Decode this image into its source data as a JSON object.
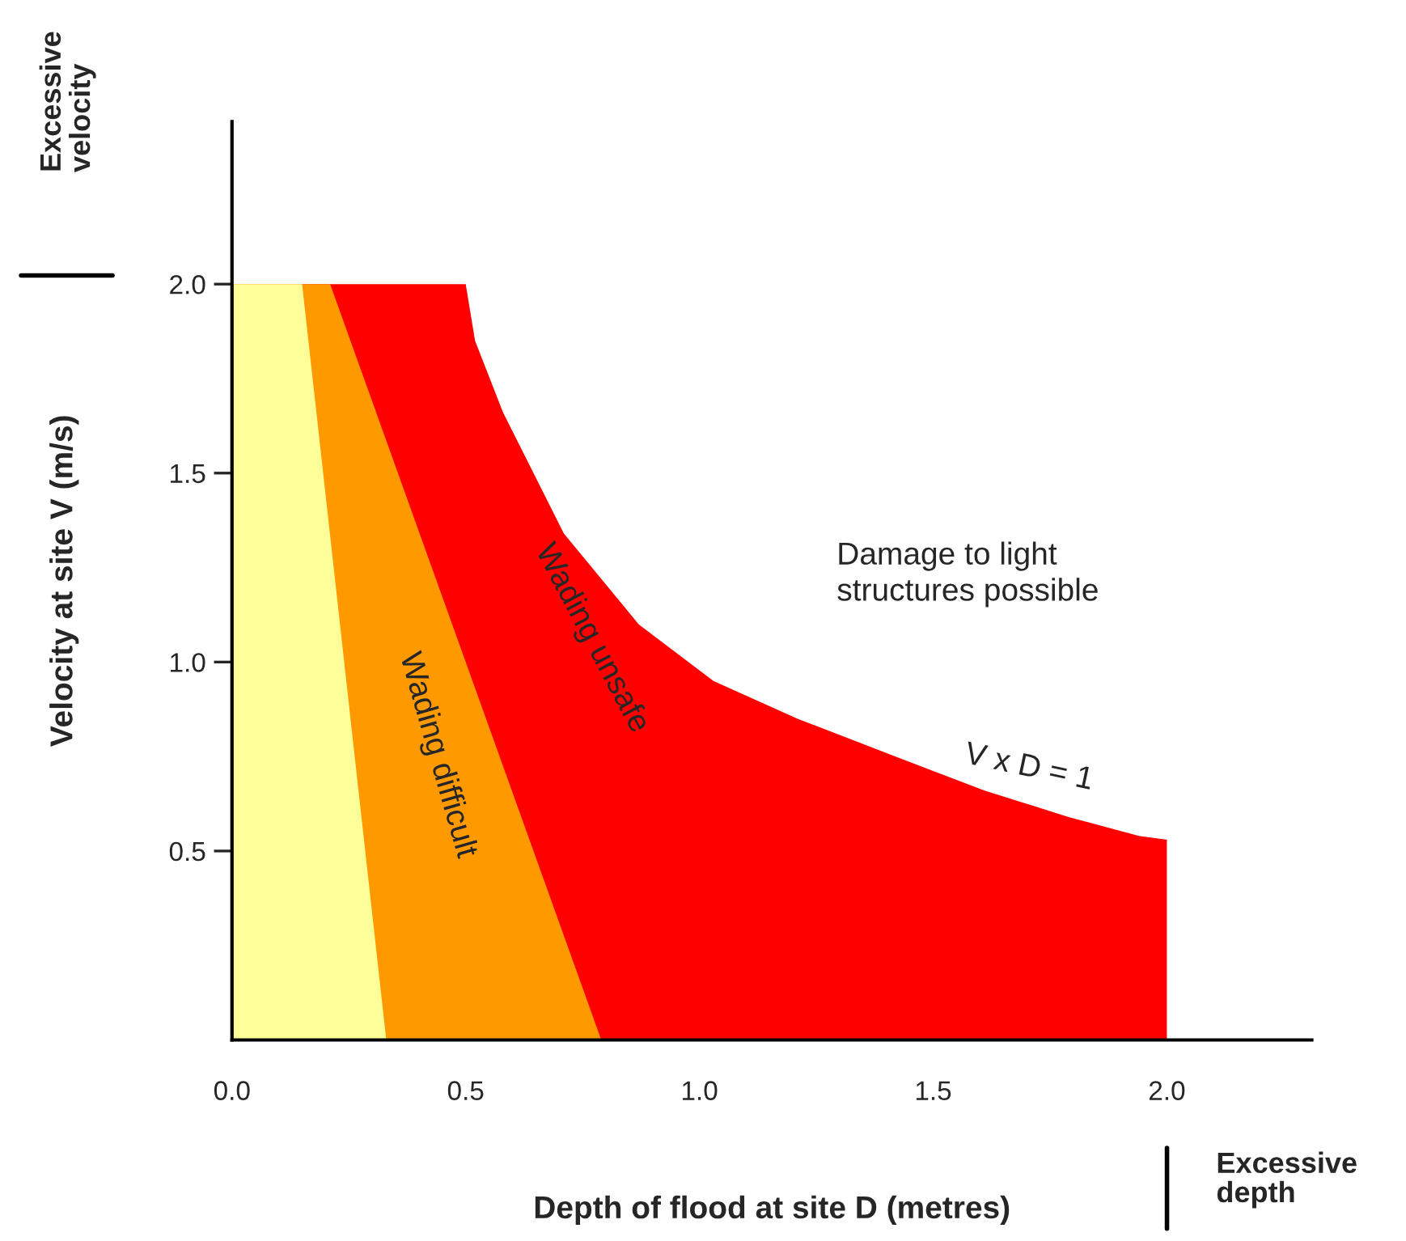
{
  "chart_data": {
    "type": "area",
    "xlabel": "Depth of flood at site D (metres)",
    "ylabel": "Velocity at site V (m/s)",
    "xlim": [
      0,
      2.31
    ],
    "ylim": [
      0,
      2.43
    ],
    "xticks": [
      {
        "value": 0,
        "label": "0.0"
      },
      0.5,
      {
        "value": 1,
        "label": "1.0"
      },
      1.5,
      {
        "value": 2,
        "label": "2.0"
      }
    ],
    "yticks": [
      0.5,
      {
        "value": 1,
        "label": "1.0"
      },
      1.5,
      {
        "value": 2,
        "label": "2.0"
      }
    ],
    "series": [
      {
        "color": "#ff0000",
        "x": [
          0,
          0.5,
          0.52,
          0.58,
          0.71,
          0.87,
          1.03,
          1.21,
          1.44,
          1.61,
          1.79,
          1.94,
          2.0
        ],
        "values": [
          2.0,
          2.0,
          1.85,
          1.66,
          1.34,
          1.1,
          0.95,
          0.85,
          0.74,
          0.66,
          0.59,
          0.54,
          0.53
        ]
      },
      {
        "color": "#ff9900",
        "x": [
          0,
          0.21,
          0.79
        ],
        "values": [
          2.0,
          2.0,
          0
        ]
      },
      {
        "color": "#ffff99",
        "x": [
          0,
          0.15,
          0.33
        ],
        "values": [
          2.0,
          2.0,
          0
        ]
      }
    ],
    "annotations": [
      "Wading difficult",
      "Wading unsafe",
      "Damage to light structures possible",
      "V x D = 1",
      "Excessive velocity",
      "Excessive depth"
    ],
    "grid": false,
    "legend": false
  }
}
